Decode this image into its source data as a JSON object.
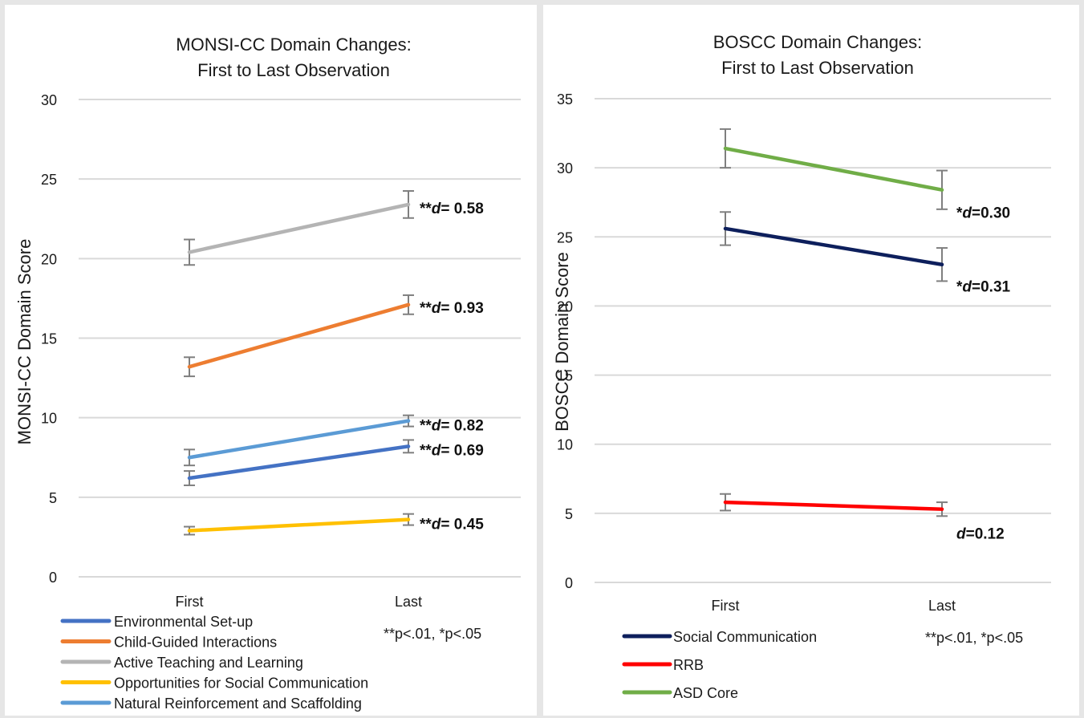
{
  "chart_data": [
    {
      "type": "line",
      "title": [
        "MONSI-CC Domain Changes:",
        "First to Last Observation"
      ],
      "xlabel": "",
      "ylabel": "MONSI-CC Domain Score",
      "categories": [
        "First",
        "Last"
      ],
      "ylim": [
        0,
        30
      ],
      "yticks": [
        "0",
        "5",
        "10",
        "15",
        "20",
        "25",
        "30"
      ],
      "grid": true,
      "legend_position": "bottom-left",
      "note": "**p<.01,  *p<.05",
      "series": [
        {
          "name": "Environmental  Set-up",
          "color": "#4472c4",
          "values": [
            6.2,
            8.2
          ],
          "error": [
            0.45,
            0.4
          ],
          "annotation": {
            "stars": "**",
            "d": "= 0.69"
          }
        },
        {
          "name": "Child-Guided  Interactions",
          "color": "#ed7d31",
          "values": [
            13.2,
            17.1
          ],
          "error": [
            0.6,
            0.6
          ],
          "annotation": {
            "stars": "**",
            "d": "= 0.93"
          }
        },
        {
          "name": "Active  Teaching  and  Learning",
          "color": "#b4b4b4",
          "values": [
            20.4,
            23.4
          ],
          "error": [
            0.8,
            0.85
          ],
          "annotation": {
            "stars": "**",
            "d": "= 0.58"
          }
        },
        {
          "name": "Opportunities  for  Social  Communication",
          "color": "#ffc000",
          "values": [
            2.9,
            3.6
          ],
          "error": [
            0.25,
            0.35
          ],
          "annotation": {
            "stars": "**",
            "d": "= 0.45"
          }
        },
        {
          "name": "Natural  Reinforcement  and  Scaffolding",
          "color": "#5b9bd5",
          "values": [
            7.5,
            9.8
          ],
          "error": [
            0.5,
            0.35
          ],
          "annotation": {
            "stars": "**",
            "d": "= 0.82"
          }
        }
      ]
    },
    {
      "type": "line",
      "title": [
        "BOSCC Domain Changes:",
        "First to Last Observation"
      ],
      "xlabel": "",
      "ylabel": "BOSCC Domain Score",
      "categories": [
        "First",
        "Last"
      ],
      "ylim": [
        0,
        35
      ],
      "yticks": [
        "0",
        "5",
        "10",
        "15",
        "20",
        "25",
        "30",
        "35"
      ],
      "grid": true,
      "legend_position": "bottom-left",
      "note": "**p<.01,  *p<.05",
      "series": [
        {
          "name": "Social  Communication",
          "color": "#0d1f5c",
          "values": [
            25.6,
            23.0
          ],
          "error": [
            1.2,
            1.2
          ],
          "annotation": {
            "stars": "*",
            "d": "=0.31"
          }
        },
        {
          "name": "RRB",
          "color": "#ff0000",
          "values": [
            5.8,
            5.3
          ],
          "error": [
            0.6,
            0.5
          ],
          "annotation": {
            "stars": "",
            "d": "=0.12"
          }
        },
        {
          "name": "ASD Core",
          "color": "#70ad47",
          "values": [
            31.4,
            28.4
          ],
          "error": [
            1.4,
            1.4
          ],
          "annotation": {
            "stars": "*",
            "d": "=0.30"
          }
        }
      ]
    }
  ]
}
